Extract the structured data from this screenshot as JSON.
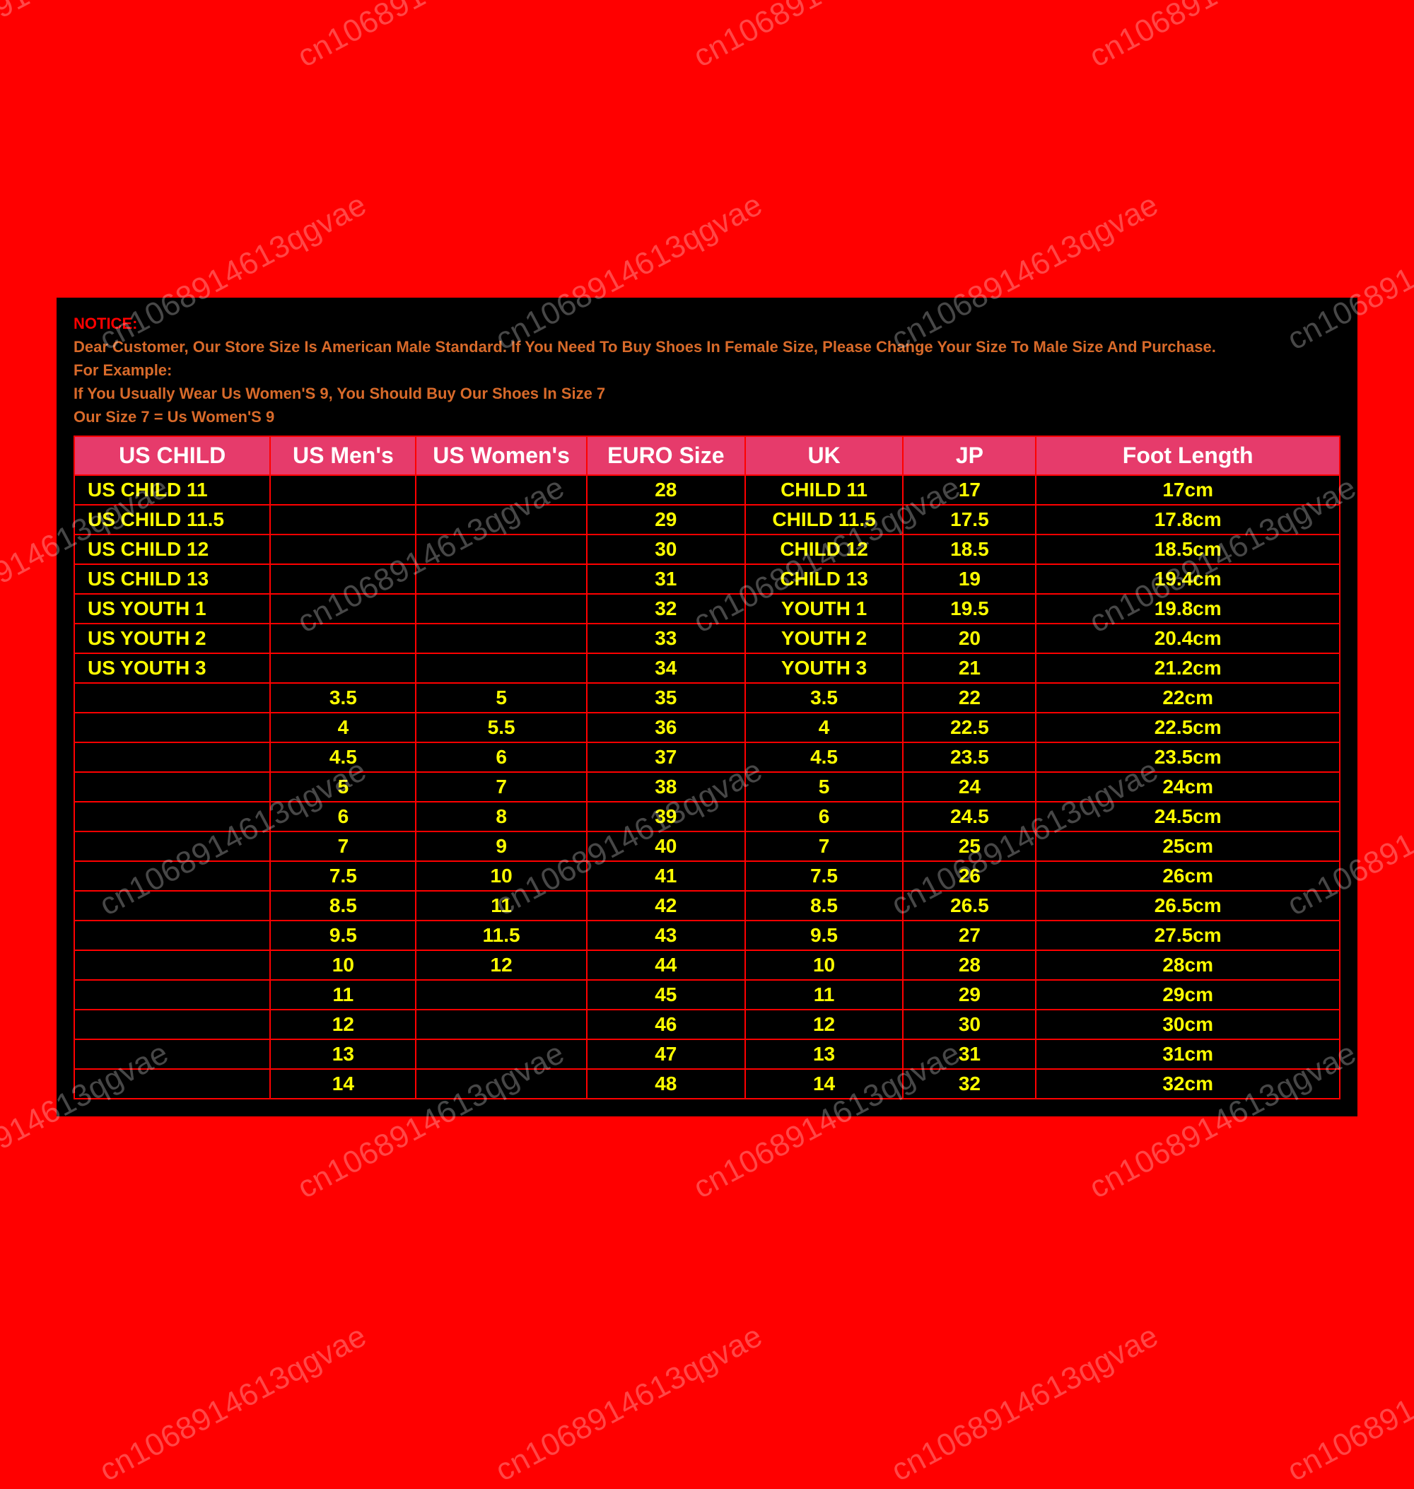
{
  "notice": {
    "title": "NOTICE:",
    "line1": "Dear Customer, Our Store Size Is American Male Standard. If You Need To Buy Shoes In Female Size, Please Change Your Size To Male Size And Purchase.",
    "line2": "For Example:",
    "line3": "If You Usually Wear Us Women'S 9, You Should Buy Our Shoes In Size 7",
    "line4": "Our Size 7 = Us Women'S 9"
  },
  "columns": [
    "US CHILD",
    "US Men's",
    "US Women's",
    "EURO Size",
    "UK",
    "JP",
    "Foot Length"
  ],
  "col_widths_pct": [
    15.5,
    11.5,
    13.5,
    12.5,
    12.5,
    10.5,
    24
  ],
  "rows": [
    [
      "US CHILD 11",
      "",
      "",
      "28",
      "CHILD 11",
      "17",
      "17cm"
    ],
    [
      "US CHILD 11.5",
      "",
      "",
      "29",
      "CHILD 11.5",
      "17.5",
      "17.8cm"
    ],
    [
      "US CHILD 12",
      "",
      "",
      "30",
      "CHILD 12",
      "18.5",
      "18.5cm"
    ],
    [
      "US CHILD 13",
      "",
      "",
      "31",
      "CHILD 13",
      "19",
      "19.4cm"
    ],
    [
      "US YOUTH 1",
      "",
      "",
      "32",
      "YOUTH 1",
      "19.5",
      "19.8cm"
    ],
    [
      "US YOUTH 2",
      "",
      "",
      "33",
      "YOUTH 2",
      "20",
      "20.4cm"
    ],
    [
      "US YOUTH 3",
      "",
      "",
      "34",
      "YOUTH 3",
      "21",
      "21.2cm"
    ],
    [
      "",
      "3.5",
      "5",
      "35",
      "3.5",
      "22",
      "22cm"
    ],
    [
      "",
      "4",
      "5.5",
      "36",
      "4",
      "22.5",
      "22.5cm"
    ],
    [
      "",
      "4.5",
      "6",
      "37",
      "4.5",
      "23.5",
      "23.5cm"
    ],
    [
      "",
      "5",
      "7",
      "38",
      "5",
      "24",
      "24cm"
    ],
    [
      "",
      "6",
      "8",
      "39",
      "6",
      "24.5",
      "24.5cm"
    ],
    [
      "",
      "7",
      "9",
      "40",
      "7",
      "25",
      "25cm"
    ],
    [
      "",
      "7.5",
      "10",
      "41",
      "7.5",
      "26",
      "26cm"
    ],
    [
      "",
      "8.5",
      "11",
      "42",
      "8.5",
      "26.5",
      "26.5cm"
    ],
    [
      "",
      "9.5",
      "11.5",
      "43",
      "9.5",
      "27",
      "27.5cm"
    ],
    [
      "",
      "10",
      "12",
      "44",
      "10",
      "28",
      "28cm"
    ],
    [
      "",
      "11",
      "",
      "45",
      "11",
      "29",
      "29cm"
    ],
    [
      "",
      "12",
      "",
      "46",
      "12",
      "30",
      "30cm"
    ],
    [
      "",
      "13",
      "",
      "47",
      "13",
      "31",
      "31cm"
    ],
    [
      "",
      "14",
      "",
      "48",
      "14",
      "32",
      "32cm"
    ]
  ],
  "watermark_text": "cn1068914613qgvae",
  "colors": {
    "page_bg": "#ff0000",
    "panel_bg": "#000000",
    "header_bg": "#e63b6b",
    "header_text": "#ffffff",
    "cell_text": "#ffff00",
    "border": "#ff0000",
    "notice_title": "#ff0000",
    "notice_text": "#d86a2a",
    "watermark": "rgba(255,255,255,0.28)"
  }
}
